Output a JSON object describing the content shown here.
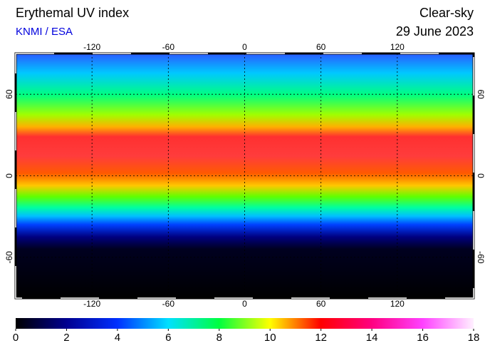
{
  "header": {
    "title": "Erythemal UV index",
    "source": "KNMI / ESA",
    "condition": "Clear-sky",
    "date": "29 June 2023"
  },
  "map": {
    "xlim": [
      -180,
      180
    ],
    "ylim": [
      -90,
      90
    ],
    "xticks": [
      -120,
      -60,
      0,
      60,
      120
    ],
    "yticks": [
      60,
      0,
      -60
    ]
  },
  "colorbar": {
    "lim": [
      0,
      18
    ],
    "ticks": [
      0,
      2,
      4,
      6,
      8,
      10,
      12,
      14,
      16,
      18
    ]
  }
}
